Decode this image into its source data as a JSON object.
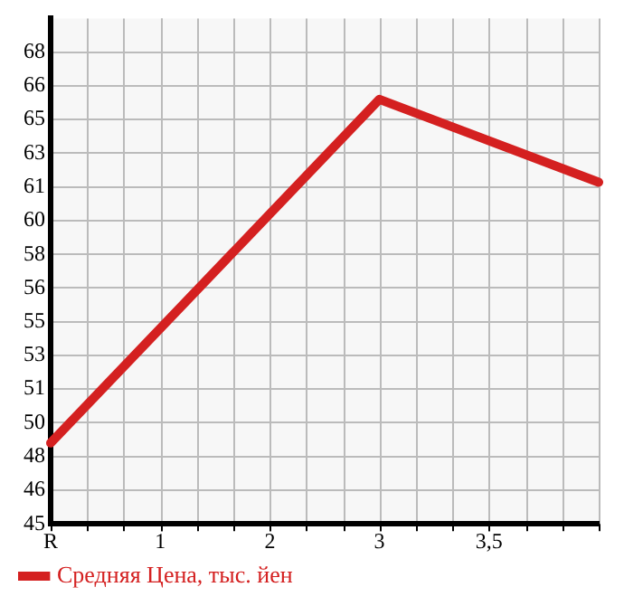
{
  "chart_data": {
    "type": "line",
    "categories": [
      "R",
      "1",
      "2",
      "3",
      "3,5",
      null
    ],
    "series": [
      {
        "name": "Средняя Цена, тыс. йен",
        "color": "#d42020",
        "values": [
          48.7,
          null,
          null,
          65.7,
          null,
          61.6
        ]
      }
    ],
    "ylim": [
      44.7,
      69.7
    ],
    "yticks": [
      {
        "value": 44.7,
        "label": "45"
      },
      {
        "value": 46.37,
        "label": "46"
      },
      {
        "value": 48.03,
        "label": "48"
      },
      {
        "value": 49.7,
        "label": "50"
      },
      {
        "value": 51.37,
        "label": "51"
      },
      {
        "value": 53.03,
        "label": "53"
      },
      {
        "value": 54.7,
        "label": "55"
      },
      {
        "value": 56.37,
        "label": "56"
      },
      {
        "value": 58.03,
        "label": "58"
      },
      {
        "value": 59.7,
        "label": "60"
      },
      {
        "value": 61.37,
        "label": "61"
      },
      {
        "value": 63.03,
        "label": "63"
      },
      {
        "value": 64.7,
        "label": "65"
      },
      {
        "value": 66.37,
        "label": "66"
      },
      {
        "value": 68.03,
        "label": "68"
      }
    ],
    "grid": true,
    "legend": "bottom",
    "marker": "none",
    "line_style": "solid"
  }
}
